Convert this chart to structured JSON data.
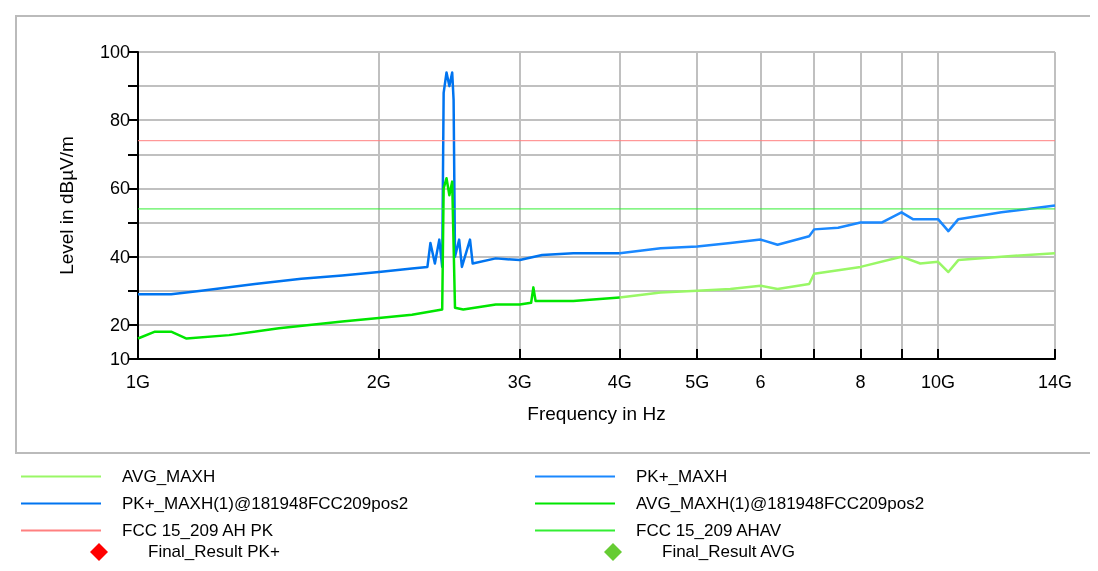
{
  "chart_data": {
    "type": "line",
    "xlabel": "Frequency in Hz",
    "ylabel": "Level in dBµV/m",
    "log": "x",
    "grid": true,
    "legend": "bottom",
    "line_style": "solid",
    "xlim": [
      1,
      14
    ],
    "xticks": [
      {
        "value": 1,
        "label": "1G"
      },
      {
        "value": 2,
        "label": "2G"
      },
      {
        "value": 3,
        "label": "3G"
      },
      {
        "value": 4,
        "label": "4G"
      },
      {
        "value": 5,
        "label": "5G"
      },
      6,
      {
        "value": 7,
        "label": null
      },
      8,
      {
        "value": 9,
        "label": null
      },
      {
        "value": 10,
        "label": "10G"
      },
      {
        "value": 14,
        "label": "14G"
      }
    ],
    "ylim": [
      10,
      100
    ],
    "yticks": [
      10,
      20,
      {
        "value": 30,
        "label": null
      },
      40,
      {
        "value": 50,
        "label": null
      },
      60,
      {
        "value": 70,
        "label": null
      },
      80,
      {
        "value": 90,
        "label": null
      },
      100
    ],
    "series": [
      {
        "name": "AVG_MAXH",
        "color": "#99f766",
        "x": [
          4,
          4.5,
          5,
          5.5,
          6,
          6.3,
          6.9,
          7,
          8,
          9,
          9.5,
          10,
          10.3,
          10.6,
          12,
          14
        ],
        "values": [
          28,
          29.5,
          30,
          30.5,
          31.5,
          30.5,
          32,
          35,
          37,
          40,
          38,
          38.5,
          35.5,
          39,
          40,
          41
        ]
      },
      {
        "name": "PK+_MAXH",
        "color": "#1a88ff",
        "x": [
          4,
          4.5,
          5,
          5.5,
          6,
          6.3,
          6.9,
          7,
          7.5,
          8,
          8.5,
          9,
          9.3,
          10,
          10.3,
          10.6,
          12,
          14
        ],
        "values": [
          41,
          42.5,
          43,
          44,
          45,
          43.5,
          46,
          48,
          48.5,
          50,
          50,
          53,
          51,
          51,
          47.5,
          51,
          53,
          55
        ]
      },
      {
        "name": "PK+_MAXH(1)@181948FCC209pos2",
        "color": "#0074f0",
        "x": [
          1,
          1.1,
          1.2,
          1.4,
          1.6,
          1.8,
          2,
          2.2,
          2.3,
          2.32,
          2.35,
          2.38,
          2.4,
          2.41,
          2.43,
          2.45,
          2.47,
          2.48,
          2.49,
          2.52,
          2.54,
          2.6,
          2.62,
          2.8,
          3,
          3.2,
          3.5,
          4
        ],
        "values": [
          29,
          29,
          30,
          32,
          33.5,
          34.5,
          35.5,
          36.5,
          37,
          44,
          38,
          45,
          37,
          88,
          94,
          90,
          94,
          86,
          40,
          45,
          37,
          45,
          38,
          39.5,
          39,
          40.5,
          41,
          41
        ]
      },
      {
        "name": "AVG_MAXH(1)@181948FCC209pos2",
        "color": "#00e600",
        "x": [
          1,
          1.05,
          1.1,
          1.15,
          1.3,
          1.5,
          1.8,
          2,
          2.2,
          2.4,
          2.41,
          2.43,
          2.45,
          2.47,
          2.49,
          2.55,
          2.8,
          3,
          3.1,
          3.12,
          3.14,
          3.5,
          4
        ],
        "values": [
          16,
          18,
          18,
          16,
          17,
          19,
          21,
          22,
          23,
          24.5,
          60,
          63,
          58,
          62,
          25,
          24.5,
          26,
          26,
          26.5,
          31,
          27,
          27,
          28
        ]
      },
      {
        "name": "FCC 15_209 AH PK",
        "color": "#ff8080",
        "x": [
          1,
          14
        ],
        "values": [
          74,
          74
        ]
      },
      {
        "name": "FCC 15_209 AHAV",
        "color": "#33ee33",
        "x": [
          1,
          14
        ],
        "values": [
          54,
          54
        ]
      },
      {
        "name": "Final_Result PK+",
        "type": "scatter",
        "marker": "diamond",
        "color": "#ff0000"
      },
      {
        "name": "Final_Result AVG",
        "type": "scatter",
        "marker": "diamond",
        "color": "#66cc33"
      }
    ]
  }
}
